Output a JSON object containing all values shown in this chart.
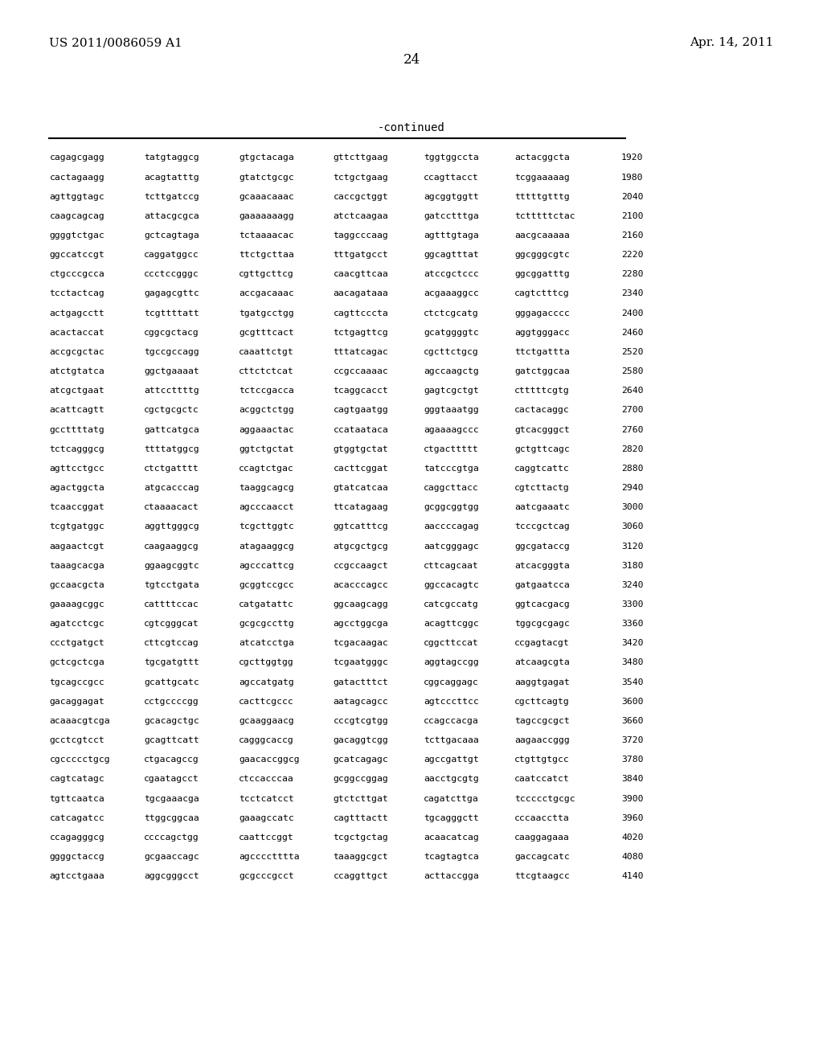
{
  "header_left": "US 2011/0086059 A1",
  "header_right": "Apr. 14, 2011",
  "page_number": "24",
  "continued_label": "-continued",
  "background_color": "#ffffff",
  "text_color": "#000000",
  "sequence_lines": [
    [
      "cagagcgagg",
      "tatgtaggcg",
      "gtgctacaga",
      "gttcttgaag",
      "tggtggccta",
      "actacggcta",
      "1920"
    ],
    [
      "cactagaagg",
      "acagtatttg",
      "gtatctgcgc",
      "tctgctgaag",
      "ccagttacct",
      "tcggaaaaag",
      "1980"
    ],
    [
      "agttggtagc",
      "tcttgatccg",
      "gcaaacaaac",
      "caccgctggt",
      "agcggtggtt",
      "tttttgtttg",
      "2040"
    ],
    [
      "caagcagcag",
      "attacgcgca",
      "gaaaaaaagg",
      "atctcaagaa",
      "gatcctttga",
      "tctttttctac",
      "2100"
    ],
    [
      "ggggtctgac",
      "gctcagtaga",
      "tctaaaacac",
      "taggcccaag",
      "agtttgtaga",
      "aacgcaaaaa",
      "2160"
    ],
    [
      "ggccatccgt",
      "caggatggcc",
      "ttctgcttaa",
      "tttgatgcct",
      "ggcagtttat",
      "ggcgggcgtc",
      "2220"
    ],
    [
      "ctgcccgcca",
      "ccctccgggc",
      "cgttgcttcg",
      "caacgttcaa",
      "atccgctccc",
      "ggcggatttg",
      "2280"
    ],
    [
      "tcctactcag",
      "gagagcgttc",
      "accgacaaac",
      "aacagataaa",
      "acgaaaggcc",
      "cagtctttcg",
      "2340"
    ],
    [
      "actgagcctt",
      "tcgttttatt",
      "tgatgcctgg",
      "cagttcccta",
      "ctctcgcatg",
      "gggagacccc",
      "2400"
    ],
    [
      "acactaccat",
      "cggcgctacg",
      "gcgtttcact",
      "tctgagttcg",
      "gcatggggtc",
      "aggtgggacc",
      "2460"
    ],
    [
      "accgcgctac",
      "tgccgccagg",
      "caaattctgt",
      "tttatcagac",
      "cgcttctgcg",
      "ttctgattta",
      "2520"
    ],
    [
      "atctgtatca",
      "ggctgaaaat",
      "cttctctcat",
      "ccgccaaaac",
      "agccaagctg",
      "gatctggcaa",
      "2580"
    ],
    [
      "atcgctgaat",
      "attccttttg",
      "tctccgacca",
      "tcaggcacct",
      "gagtcgctgt",
      "ctttttcgtg",
      "2640"
    ],
    [
      "acattcagtt",
      "cgctgcgctc",
      "acggctctgg",
      "cagtgaatgg",
      "gggtaaatgg",
      "cactacaggc",
      "2700"
    ],
    [
      "gccttttatg",
      "gattcatgca",
      "aggaaactac",
      "ccataataca",
      "agaaaagccc",
      "gtcacgggct",
      "2760"
    ],
    [
      "tctcagggcg",
      "ttttatggcg",
      "ggtctgctat",
      "gtggtgctat",
      "ctgacttttt",
      "gctgttcagc",
      "2820"
    ],
    [
      "agttcctgcc",
      "ctctgatttt",
      "ccagtctgac",
      "cacttcggat",
      "tatcccgtga",
      "caggtcattc",
      "2880"
    ],
    [
      "agactggcta",
      "atgcacccag",
      "taaggcagcg",
      "gtatcatcaa",
      "caggcttacc",
      "cgtcttactg",
      "2940"
    ],
    [
      "tcaaccggat",
      "ctaaaacact",
      "agcccaacct",
      "ttcatagaag",
      "gcggcggtgg",
      "aatcgaaatc",
      "3000"
    ],
    [
      "tcgtgatggc",
      "aggttgggcg",
      "tcgcttggtc",
      "ggtcatttcg",
      "aaccccagag",
      "tcccgctcag",
      "3060"
    ],
    [
      "aagaactcgt",
      "caagaaggcg",
      "atagaaggcg",
      "atgcgctgcg",
      "aatcgggagc",
      "ggcgataccg",
      "3120"
    ],
    [
      "taaagcacga",
      "ggaagcggtc",
      "agcccattcg",
      "ccgccaagct",
      "cttcagcaat",
      "atcacgggta",
      "3180"
    ],
    [
      "gccaacgcta",
      "tgtcctgata",
      "gcggtccgcc",
      "acacccagcc",
      "ggccacagtc",
      "gatgaatcca",
      "3240"
    ],
    [
      "gaaaagcggc",
      "cattttccac",
      "catgatattc",
      "ggcaagcagg",
      "catcgccatg",
      "ggtcacgacg",
      "3300"
    ],
    [
      "agatcctcgc",
      "cgtcgggcat",
      "gcgcgccttg",
      "agcctggcga",
      "acagttcggc",
      "tggcgcgagc",
      "3360"
    ],
    [
      "ccctgatgct",
      "cttcgtccag",
      "atcatcctga",
      "tcgacaagac",
      "cggcttccat",
      "ccgagtacgt",
      "3420"
    ],
    [
      "gctcgctcga",
      "tgcgatgttt",
      "cgcttggtgg",
      "tcgaatgggc",
      "aggtagccgg",
      "atcaagcgta",
      "3480"
    ],
    [
      "tgcagccgcc",
      "gcattgcatc",
      "agccatgatg",
      "gatactttct",
      "cggcaggagc",
      "aaggtgagat",
      "3540"
    ],
    [
      "gacaggagat",
      "cctgccccgg",
      "cacttcgccc",
      "aatagcagcc",
      "agtcccttcc",
      "cgcttcagtg",
      "3600"
    ],
    [
      "acaaacgtcga",
      "gcacagctgc",
      "gcaaggaacg",
      "cccgtcgtgg",
      "ccagccacga",
      "tagccgcgct",
      "3660"
    ],
    [
      "gcctcgtcct",
      "gcagttcatt",
      "cagggcaccg",
      "gacaggtcgg",
      "tcttgacaaa",
      "aagaaccggg",
      "3720"
    ],
    [
      "cgccccctgcg",
      "ctgacagccg",
      "gaacaccggcg",
      "gcatcagagc",
      "agccgattgt",
      "ctgttgtgcc",
      "3780"
    ],
    [
      "cagtcatagc",
      "cgaatagcct",
      "ctccacccaa",
      "gcggccggag",
      "aacctgcgtg",
      "caatccatct",
      "3840"
    ],
    [
      "tgttcaatca",
      "tgcgaaacga",
      "tcctcatcct",
      "gtctcttgat",
      "cagatcttga",
      "tccccctgcgc",
      "3900"
    ],
    [
      "catcagatcc",
      "ttggcggcaa",
      "gaaagccatc",
      "cagtttactt",
      "tgcagggctt",
      "cccaacctta",
      "3960"
    ],
    [
      "ccagagggcg",
      "ccccagctgg",
      "caattccggt",
      "tcgctgctag",
      "acaacatcag",
      "caaggagaaa",
      "4020"
    ],
    [
      "ggggctaccg",
      "gcgaaccagc",
      "agcccctttta",
      "taaaggcgct",
      "tcagtagtca",
      "gaccagcatc",
      "4080"
    ],
    [
      "agtcctgaaa",
      "aggcgggcct",
      "gcgcccgcct",
      "ccaggttgct",
      "acttaccgga",
      "ttcgtaagcc",
      "4140"
    ]
  ]
}
